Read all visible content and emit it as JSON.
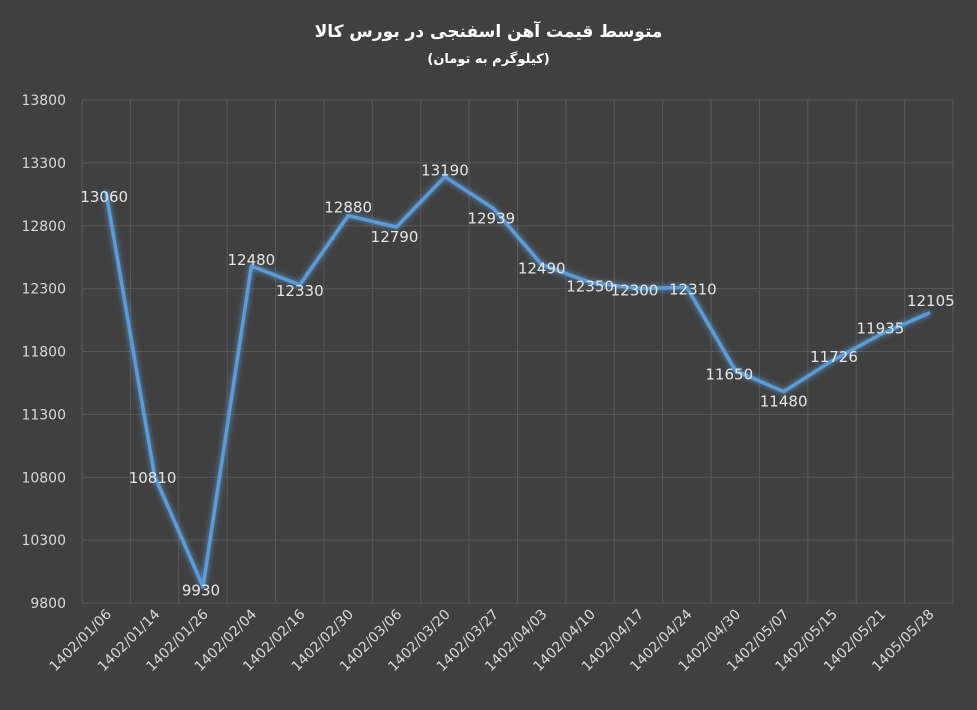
{
  "chart_data": {
    "type": "line",
    "title": "متوسط قیمت آهن اسفنجی در بورس کالا",
    "subtitle": "(کیلوگرم به تومان)",
    "categories": [
      "1402/01/06",
      "1402/01/14",
      "1402/01/26",
      "1402/02/04",
      "1402/02/16",
      "1402/02/30",
      "1402/03/06",
      "1402/03/20",
      "1402/03/27",
      "1402/04/03",
      "1402/04/10",
      "1402/04/17",
      "1402/04/24",
      "1402/04/30",
      "1402/05/07",
      "1402/05/15",
      "1402/05/21",
      "1405/05/28"
    ],
    "series": [
      {
        "values": [
          13060,
          10810,
          9930,
          12480,
          12330,
          12880,
          12790,
          13190,
          12939,
          12490,
          12350,
          12300,
          12310,
          11650,
          11480,
          11726,
          11935,
          12105
        ]
      }
    ],
    "ylim": [
      9800,
      13800
    ],
    "yticks": [
      9800,
      10300,
      10800,
      11300,
      11800,
      12300,
      12800,
      13300,
      13800
    ],
    "grid": true,
    "legend": "none",
    "colors": {
      "background": "#404040",
      "line": "#5b9bd5",
      "grid": "#595959",
      "text": "#d9d9d9"
    }
  }
}
